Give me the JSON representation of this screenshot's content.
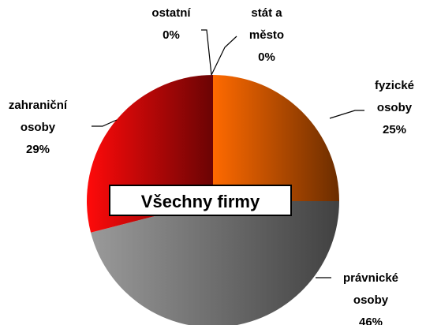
{
  "chart_data": {
    "type": "pie",
    "title": "Všechny firmy",
    "categories": [
      "stát a město",
      "fyzické osoby",
      "právnické osoby",
      "zahraniční osoby",
      "ostatní"
    ],
    "values": [
      0,
      25,
      46,
      29,
      0
    ],
    "value_labels": [
      "0%",
      "25%",
      "46%",
      "29%",
      "0%"
    ],
    "colors": [
      "#3366cc",
      "#ff6a00",
      "#9a9a9a",
      "#ff0a0a",
      "#999999"
    ]
  }
}
